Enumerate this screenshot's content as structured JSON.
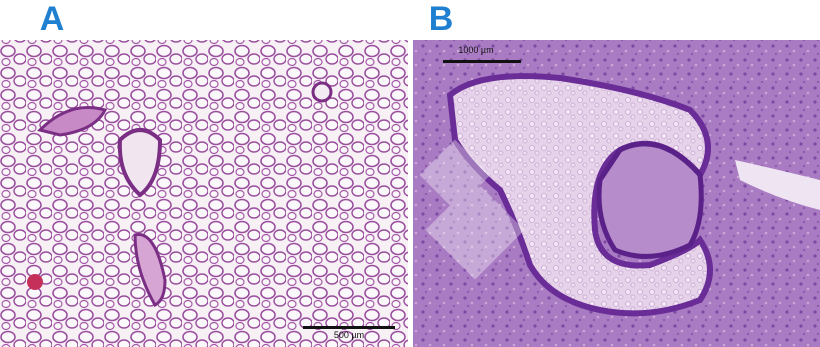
{
  "panels": [
    {
      "label": "A",
      "scale_bar": "500 µm"
    },
    {
      "label": "B",
      "scale_bar": "1000 µm"
    }
  ]
}
